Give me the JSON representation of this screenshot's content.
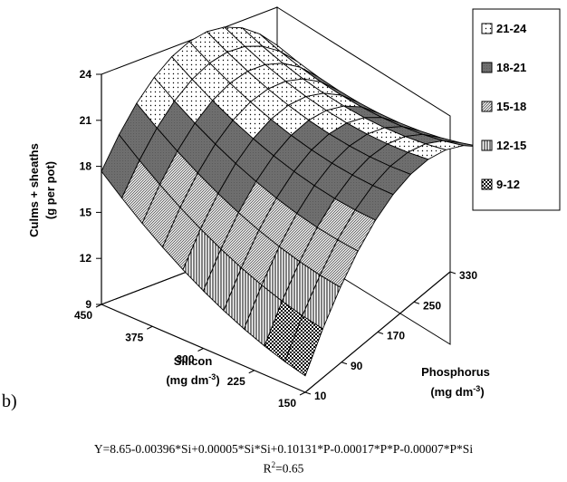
{
  "chart_data": {
    "type": "surface3d",
    "panel_label": "b)",
    "zlabel_line1": "Culms + sheaths",
    "zlabel_line2": "(g per pot)",
    "xlabel_line1": "Silicon",
    "xlabel_line2_pre": "(mg dm",
    "xlabel_line2_sup": "-3",
    "xlabel_line2_post": ")",
    "ylabel_line1": "Phosphorus",
    "ylabel_line2_pre": "(mg dm",
    "ylabel_line2_sup": "-3",
    "ylabel_line2_post": ")",
    "x_ticks": [
      "450",
      "375",
      "300",
      "225",
      "150"
    ],
    "y_ticks": [
      "10",
      "90",
      "170",
      "250",
      "330"
    ],
    "z_ticks": [
      "9",
      "12",
      "15",
      "18",
      "21",
      "24"
    ],
    "xlim": [
      150,
      450
    ],
    "ylim": [
      10,
      330
    ],
    "zlim": [
      9,
      24
    ],
    "grid_lines": 10,
    "legend_position": "top-right",
    "legend": [
      {
        "label": "21-24",
        "range": [
          21,
          24
        ],
        "pattern": "dots-light"
      },
      {
        "label": "18-21",
        "range": [
          18,
          21
        ],
        "pattern": "dark-solid"
      },
      {
        "label": "15-18",
        "range": [
          15,
          18
        ],
        "pattern": "diagonal"
      },
      {
        "label": "12-15",
        "range": [
          12,
          15
        ],
        "pattern": "vertical"
      },
      {
        "label": "9-12",
        "range": [
          9,
          12
        ],
        "pattern": "checker"
      }
    ],
    "coefficients": {
      "const": 8.65,
      "si": -0.00396,
      "si2": 5e-05,
      "p": 0.10131,
      "p2": -0.00017,
      "psi": -7e-05
    },
    "equation": "Y=8.65-0.00396*Si+0.00005*Si*Si+0.10131*P-0.00017*P*P-0.00007*P*Si",
    "r2_label": "R",
    "r2_sup": "2",
    "r2_value": "=0.65"
  }
}
